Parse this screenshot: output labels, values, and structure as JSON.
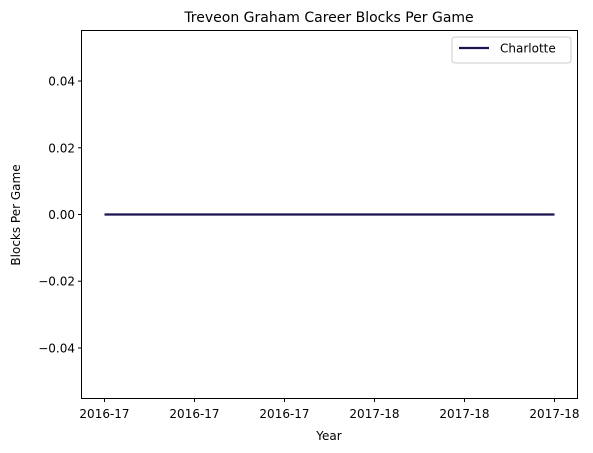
{
  "chart_data": {
    "type": "line",
    "title": "Treveon Graham Career Blocks Per Game",
    "xlabel": "Year",
    "ylabel": "Blocks Per Game",
    "x_tick_labels": [
      "2016-17",
      "2016-17",
      "2016-17",
      "2017-18",
      "2017-18",
      "2017-18"
    ],
    "ylim": [
      -0.055,
      0.055
    ],
    "y_ticks": [
      -0.04,
      -0.02,
      0.0,
      0.02,
      0.04
    ],
    "y_tick_labels": [
      "−0.04",
      "−0.02",
      "0.00",
      "0.02",
      "0.04"
    ],
    "series": [
      {
        "name": "Charlotte",
        "color": "#1a1450",
        "x": [
          0,
          1,
          2,
          3,
          4,
          5
        ],
        "values": [
          0,
          0,
          0,
          0,
          0,
          0
        ]
      }
    ],
    "legend_position": "top-right",
    "grid": false
  }
}
